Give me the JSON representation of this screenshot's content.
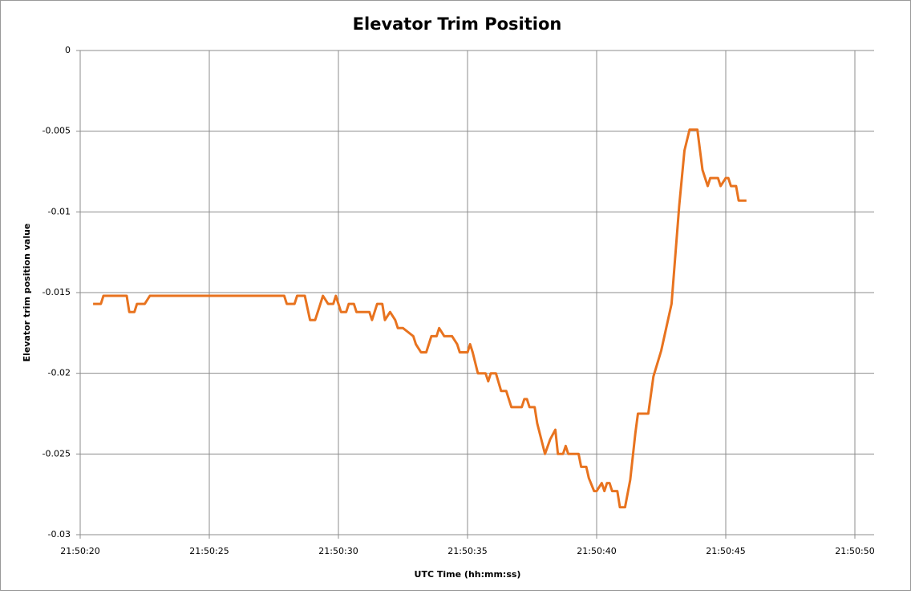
{
  "chart_data": {
    "type": "line",
    "title": "Elevator Trim Position",
    "x_label": "UTC Time (hh:mm:ss)",
    "y_label": "Elevator trim position  value",
    "xlim": [
      "21:50:20",
      "21:50:50"
    ],
    "xticks": [
      "21:50:20",
      "21:50:25",
      "21:50:30",
      "21:50:35",
      "21:50:40",
      "21:50:45",
      "21:50:50"
    ],
    "ylim": [
      -0.03,
      0
    ],
    "yticks": [
      0,
      -0.005,
      -0.01,
      -0.015,
      -0.02,
      -0.025,
      -0.03
    ],
    "grid": true,
    "x": [
      "21:50:20.5",
      "21:50:20.8",
      "21:50:20.9",
      "21:50:21.8",
      "21:50:21.9",
      "21:50:22.1",
      "21:50:22.2",
      "21:50:22.5",
      "21:50:22.7",
      "21:50:27.9",
      "21:50:28.0",
      "21:50:28.3",
      "21:50:28.4",
      "21:50:28.7",
      "21:50:28.9",
      "21:50:29.1",
      "21:50:29.3",
      "21:50:29.4",
      "21:50:29.6",
      "21:50:29.8",
      "21:50:29.9",
      "21:50:30.1",
      "21:50:30.3",
      "21:50:30.4",
      "21:50:30.6",
      "21:50:30.7",
      "21:50:31.2",
      "21:50:31.3",
      "21:50:31.4",
      "21:50:31.5",
      "21:50:31.7",
      "21:50:31.8",
      "21:50:32.0",
      "21:50:32.2",
      "21:50:32.3",
      "21:50:32.5",
      "21:50:32.9",
      "21:50:33.0",
      "21:50:33.2",
      "21:50:33.4",
      "21:50:33.6",
      "21:50:33.8",
      "21:50:33.9",
      "21:50:34.1",
      "21:50:34.4",
      "21:50:34.6",
      "21:50:34.7",
      "21:50:35.0",
      "21:50:35.1",
      "21:50:35.2",
      "21:50:35.4",
      "21:50:35.7",
      "21:50:35.8",
      "21:50:35.9",
      "21:50:36.1",
      "21:50:36.3",
      "21:50:36.5",
      "21:50:36.7",
      "21:50:37.1",
      "21:50:37.2",
      "21:50:37.3",
      "21:50:37.4",
      "21:50:37.6",
      "21:50:37.7",
      "21:50:38.0",
      "21:50:38.2",
      "21:50:38.4",
      "21:50:38.5",
      "21:50:38.7",
      "21:50:38.8",
      "21:50:38.9",
      "21:50:39.3",
      "21:50:39.4",
      "21:50:39.6",
      "21:50:39.7",
      "21:50:39.9",
      "21:50:40.0",
      "21:50:40.2",
      "21:50:40.3",
      "21:50:40.4",
      "21:50:40.5",
      "21:50:40.6",
      "21:50:40.8",
      "21:50:40.9",
      "21:50:41.1",
      "21:50:41.3",
      "21:50:41.5",
      "21:50:41.6",
      "21:50:42.0",
      "21:50:42.2",
      "21:50:42.5",
      "21:50:42.9",
      "21:50:43.2",
      "21:50:43.4",
      "21:50:43.6",
      "21:50:43.9",
      "21:50:44.1",
      "21:50:44.3",
      "21:50:44.4",
      "21:50:44.7",
      "21:50:44.8",
      "21:50:45.0",
      "21:50:45.1",
      "21:50:45.2",
      "21:50:45.4",
      "21:50:45.5",
      "21:50:45.8"
    ],
    "series": [
      {
        "name": "Elevator trim position",
        "color": "#e8731f",
        "values": [
          -0.0157,
          -0.0157,
          -0.0152,
          -0.0152,
          -0.0162,
          -0.0162,
          -0.0157,
          -0.0157,
          -0.0152,
          -0.0152,
          -0.0157,
          -0.0157,
          -0.0152,
          -0.0152,
          -0.0167,
          -0.0167,
          -0.0157,
          -0.0152,
          -0.0157,
          -0.0157,
          -0.0152,
          -0.0162,
          -0.0162,
          -0.0157,
          -0.0157,
          -0.0162,
          -0.0162,
          -0.0167,
          -0.0162,
          -0.0157,
          -0.0157,
          -0.0167,
          -0.0162,
          -0.0167,
          -0.0172,
          -0.0172,
          -0.0177,
          -0.0182,
          -0.0187,
          -0.0187,
          -0.0177,
          -0.0177,
          -0.0172,
          -0.0177,
          -0.0177,
          -0.0182,
          -0.0187,
          -0.0187,
          -0.0182,
          -0.0187,
          -0.02,
          -0.02,
          -0.0205,
          -0.02,
          -0.02,
          -0.0211,
          -0.0211,
          -0.0221,
          -0.0221,
          -0.0216,
          -0.0216,
          -0.0221,
          -0.0221,
          -0.0231,
          -0.025,
          -0.0241,
          -0.0235,
          -0.025,
          -0.025,
          -0.0245,
          -0.025,
          -0.025,
          -0.0258,
          -0.0258,
          -0.0265,
          -0.0273,
          -0.0273,
          -0.0268,
          -0.0273,
          -0.0268,
          -0.0268,
          -0.0273,
          -0.0273,
          -0.0283,
          -0.0283,
          -0.0266,
          -0.0237,
          -0.0225,
          -0.0225,
          -0.0202,
          -0.0186,
          -0.0157,
          -0.0096,
          -0.0062,
          -0.0049,
          -0.0049,
          -0.0074,
          -0.0084,
          -0.0079,
          -0.0079,
          -0.0084,
          -0.0079,
          -0.0079,
          -0.0084,
          -0.0084,
          -0.0093,
          -0.0093
        ]
      }
    ]
  }
}
